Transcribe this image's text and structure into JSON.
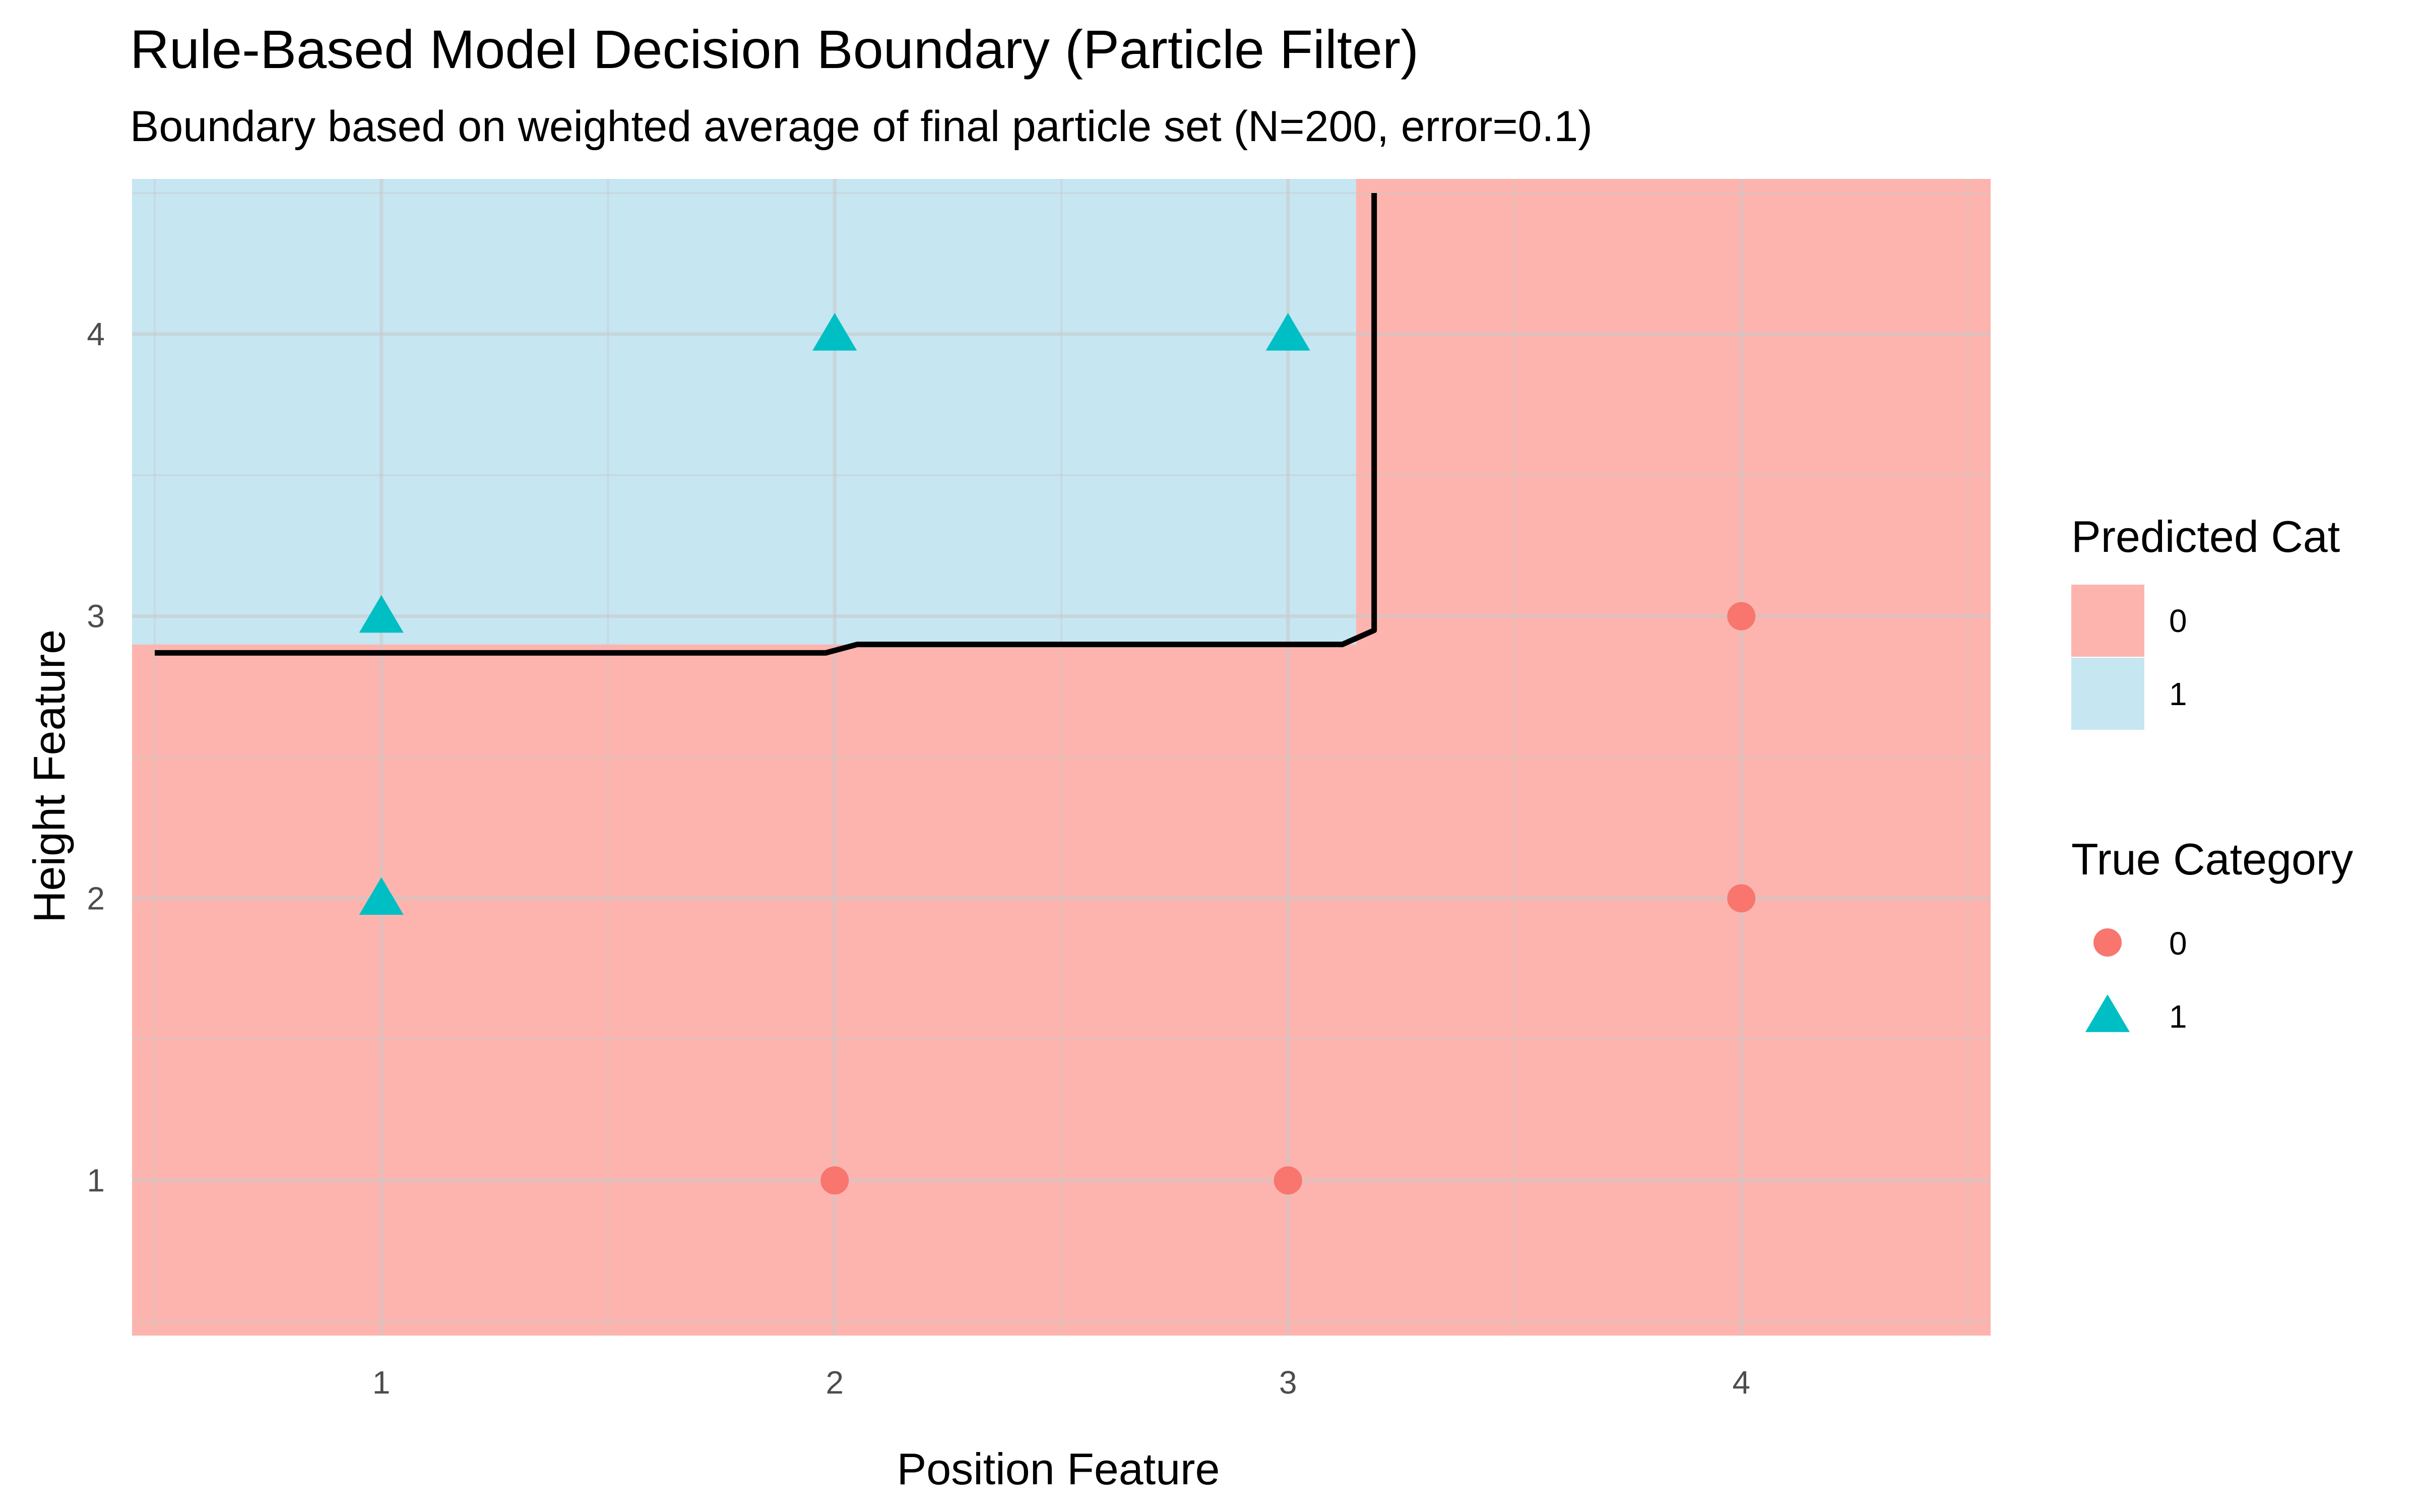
{
  "chart_data": {
    "type": "scatter",
    "title": "Rule-Based Model Decision Boundary (Particle Filter)",
    "subtitle": "Boundary based on weighted average of final particle set (N=200, error=0.1)",
    "xlabel": "Position Feature",
    "ylabel": "Height Feature",
    "xlim": [
      0.45,
      4.55
    ],
    "ylim": [
      0.45,
      4.55
    ],
    "x_ticks": [
      1,
      2,
      3,
      4
    ],
    "y_ticks": [
      1,
      2,
      3,
      4
    ],
    "grid": true,
    "legend_position": "right",
    "regions": [
      {
        "name": "Predicted Cat 0",
        "category": "0",
        "color": "#FDB4AE",
        "polygon": [
          [
            0.45,
            0.45
          ],
          [
            4.55,
            0.45
          ],
          [
            4.55,
            4.55
          ],
          [
            3.15,
            4.55
          ],
          [
            3.15,
            2.9
          ],
          [
            0.45,
            2.9
          ]
        ]
      },
      {
        "name": "Predicted Cat 1",
        "category": "1",
        "color": "#C6E6F2",
        "polygon": [
          [
            0.45,
            2.9
          ],
          [
            3.15,
            2.9
          ],
          [
            3.15,
            4.55
          ],
          [
            0.45,
            4.55
          ]
        ]
      }
    ],
    "boundary": {
      "color": "#000000",
      "points": [
        [
          0.5,
          2.87
        ],
        [
          1.98,
          2.87
        ],
        [
          2.05,
          2.9
        ],
        [
          3.12,
          2.9
        ],
        [
          3.19,
          2.95
        ],
        [
          3.19,
          4.5
        ]
      ]
    },
    "series": [
      {
        "name": "0",
        "shape": "circle",
        "color": "#F8766D",
        "points": [
          [
            2,
            1
          ],
          [
            3,
            1
          ],
          [
            4,
            2
          ],
          [
            4,
            3
          ]
        ]
      },
      {
        "name": "1",
        "shape": "triangle",
        "color": "#00BFC4",
        "points": [
          [
            1,
            2
          ],
          [
            1,
            3
          ],
          [
            2,
            4
          ],
          [
            3,
            4
          ]
        ]
      }
    ],
    "legends": [
      {
        "title": "Predicted Cat",
        "items": [
          {
            "label": "0",
            "color": "#FDB4AE"
          },
          {
            "label": "1",
            "color": "#C6E6F2"
          }
        ]
      },
      {
        "title": "True Category",
        "items": [
          {
            "label": "0",
            "shape": "circle",
            "color": "#F8766D"
          },
          {
            "label": "1",
            "shape": "triangle",
            "color": "#00BFC4"
          }
        ]
      }
    ]
  }
}
